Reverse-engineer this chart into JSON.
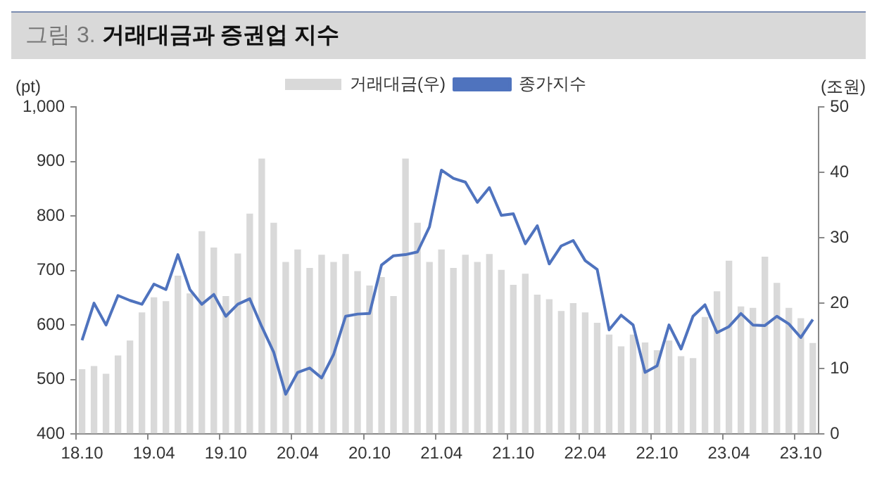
{
  "chart_data": {
    "type": "bar",
    "title": "그림 3. 거래대금과 증권업 지수",
    "categories": [
      "18.10",
      null,
      null,
      null,
      null,
      null,
      "19.04",
      null,
      null,
      null,
      null,
      null,
      "19.10",
      null,
      null,
      null,
      null,
      null,
      "20.04",
      null,
      null,
      null,
      null,
      null,
      "20.10",
      null,
      null,
      null,
      null,
      null,
      "21.04",
      null,
      null,
      null,
      null,
      null,
      "21.10",
      null,
      null,
      null,
      null,
      null,
      "22.04",
      null,
      null,
      null,
      null,
      null,
      "22.10",
      null,
      null,
      null,
      null,
      null,
      "23.04",
      null,
      null,
      null,
      null,
      null,
      "23.10",
      null
    ],
    "series": [
      {
        "name": "거래대금(우)",
        "axis": "y2",
        "color": "#d9d9d9",
        "values": [
          9.9,
          10.4,
          9.2,
          12.0,
          14.3,
          18.6,
          20.9,
          20.3,
          24.2,
          21.5,
          31.0,
          28.5,
          21.1,
          27.6,
          33.7,
          42.1,
          32.3,
          26.3,
          28.2,
          25.4,
          27.4,
          26.3,
          27.5,
          24.9,
          22.7,
          24.0,
          21.1,
          42.1,
          32.3,
          26.3,
          28.2,
          25.4,
          27.4,
          26.3,
          27.5,
          25.1,
          22.8,
          24.5,
          21.3,
          20.6,
          18.8,
          20.0,
          18.6,
          17.0,
          15.2,
          13.4,
          15.2,
          14.0,
          12.8,
          14.3,
          11.9,
          11.6,
          17.9,
          21.8,
          26.5,
          19.5,
          19.3,
          27.1,
          23.1,
          19.3,
          17.7,
          13.9
        ]
      },
      {
        "name": "종가지수",
        "type": "line",
        "color": "#4f73be",
        "values": [
          572,
          640,
          600,
          654,
          645,
          638,
          675,
          665,
          729,
          665,
          638,
          656,
          616,
          638,
          648,
          597,
          550,
          473,
          513,
          521,
          503,
          546,
          616,
          620,
          621,
          710,
          727,
          729,
          734,
          780,
          884,
          869,
          862,
          825,
          852,
          801,
          804,
          749,
          782,
          712,
          745,
          755,
          718,
          702,
          591,
          618,
          600,
          513,
          525,
          600,
          556,
          616,
          637,
          586,
          597,
          621,
          600,
          599,
          616,
          602,
          577,
          610
        ]
      }
    ],
    "ylabel": "(pt)",
    "y2label": "(조원)",
    "ylim": [
      400,
      1000
    ],
    "yticks": [
      400,
      500,
      600,
      700,
      800,
      900,
      {
        "value": 1000,
        "label": "1,000"
      }
    ],
    "y2lim": [
      0,
      50
    ],
    "y2ticks": [
      0,
      10,
      20,
      30,
      40,
      50
    ],
    "grid": false,
    "legend": "top",
    "marker": "none",
    "line_style": "solid"
  }
}
